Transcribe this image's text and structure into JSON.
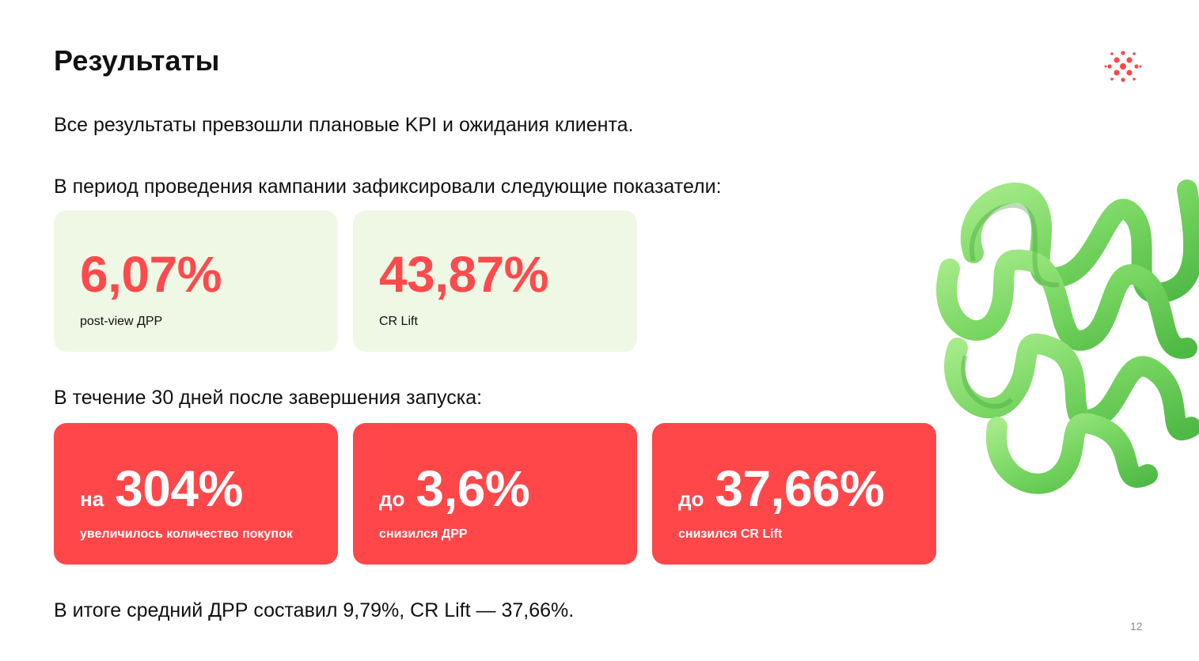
{
  "slide": {
    "title": "Результаты",
    "intro": "Все результаты превзошли плановые KPI и ожидания клиента.",
    "period_label": "В период проведения кампании зафиксировали следующие показатели:",
    "after_label": "В течение 30 дней после завершения запуска:",
    "summary": "В итоге средний ДРР составил 9,79%, CR Lift — 37,66%.",
    "page_number": "12"
  },
  "campaign_metrics": [
    {
      "value": "6,07%",
      "caption": "post-view ДРР"
    },
    {
      "value": "43,87%",
      "caption": "CR Lift"
    }
  ],
  "post_metrics": [
    {
      "prefix": "на",
      "value": "304%",
      "caption": "увеличилось количество покупок"
    },
    {
      "prefix": "до",
      "value": "3,6%",
      "caption": "снизился ДРР"
    },
    {
      "prefix": "до",
      "value": "37,66%",
      "caption": "снизился CR Lift"
    }
  ],
  "colors": {
    "accent_red": "#ff474a",
    "light_green_card": "#eff8e5",
    "decor_green": "#7ed86a"
  },
  "icons": {
    "logo": "brand-logo-icon",
    "decoration": "green-ribbon-decoration"
  }
}
